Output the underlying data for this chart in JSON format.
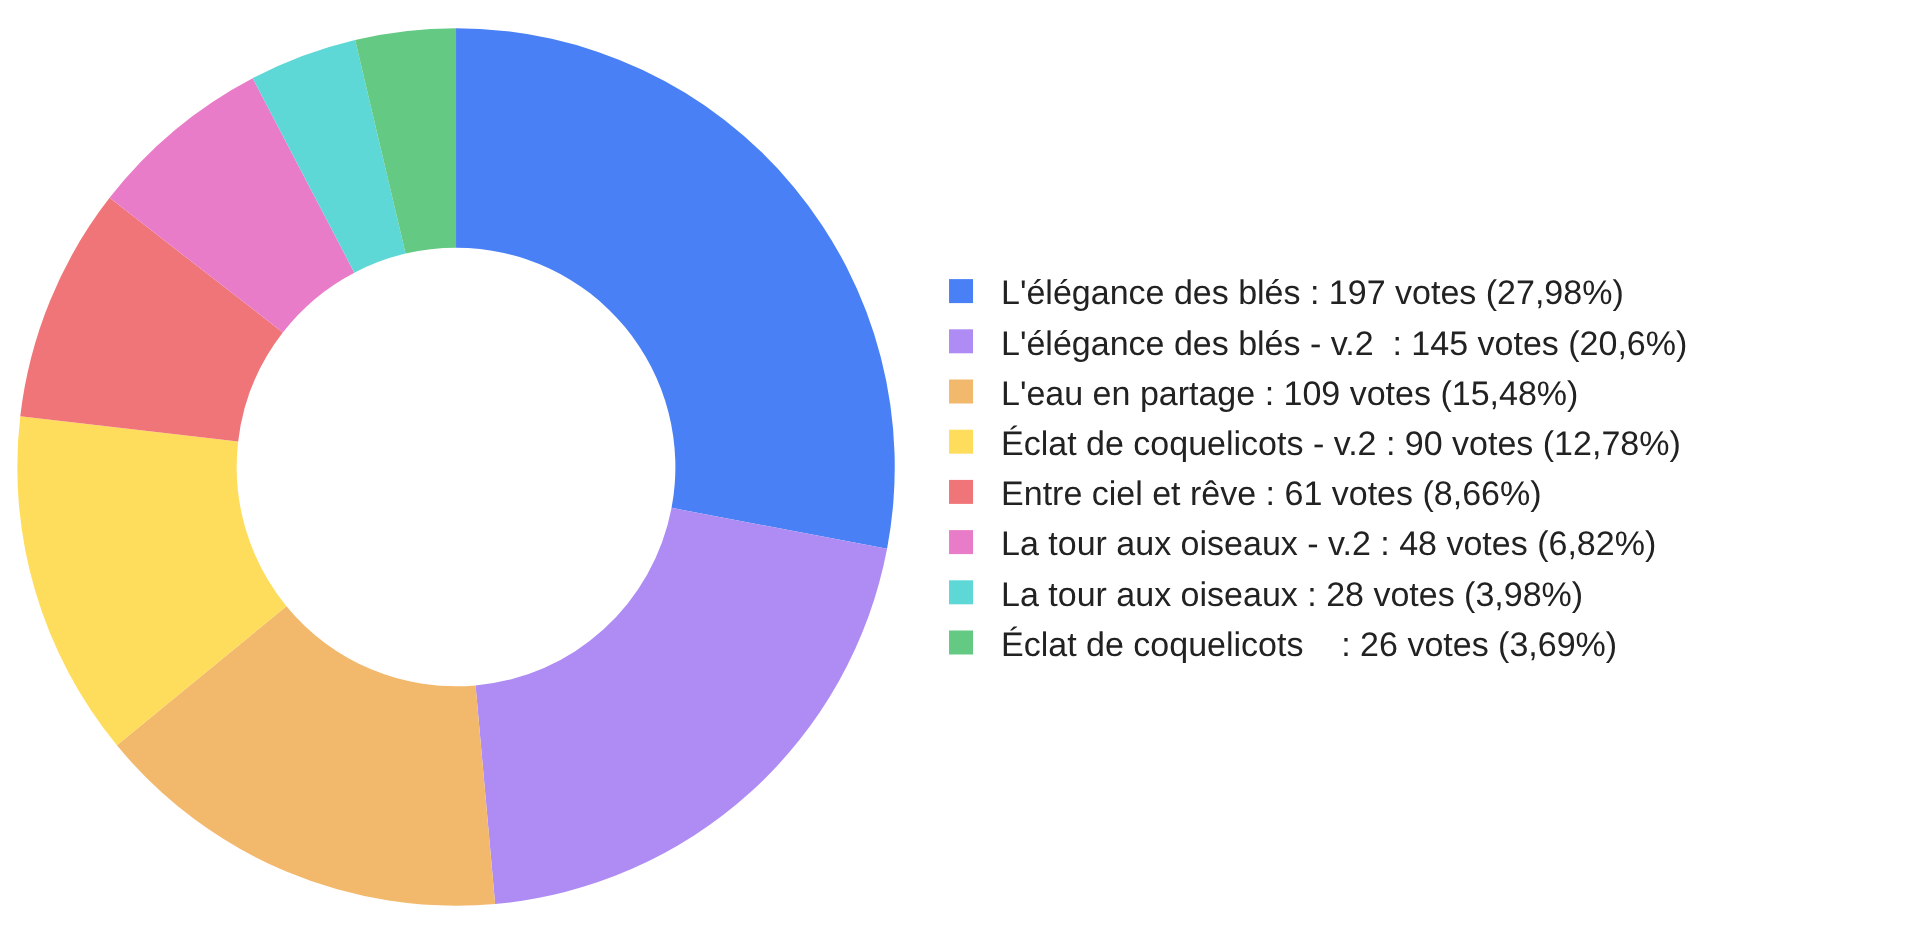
{
  "chart_data": {
    "type": "donut",
    "categories": [
      "L'élégance des blés : 197 votes (27,98%)",
      "L'élégance des blés - v.2  : 145 votes (20,6%)",
      "L'eau en partage : 109 votes (15,48%)",
      "Éclat de coquelicots - v.2 : 90 votes (12,78%)",
      "Entre ciel et rêve : 61 votes (8,66%)",
      "La tour aux oiseaux - v.2 : 48 votes (6,82%)",
      "La tour aux oiseaux : 28 votes (3,98%)",
      "Éclat de coquelicots    : 26 votes (3,69%)"
    ],
    "values": [
      197,
      145,
      109,
      90,
      61,
      48,
      28,
      26
    ],
    "colors": [
      "#4a80f6",
      "#ae8cf3",
      "#f2b86b",
      "#ffdd5c",
      "#f07579",
      "#e97cc9",
      "#5ed7d7",
      "#63c983"
    ],
    "legend": "right"
  }
}
